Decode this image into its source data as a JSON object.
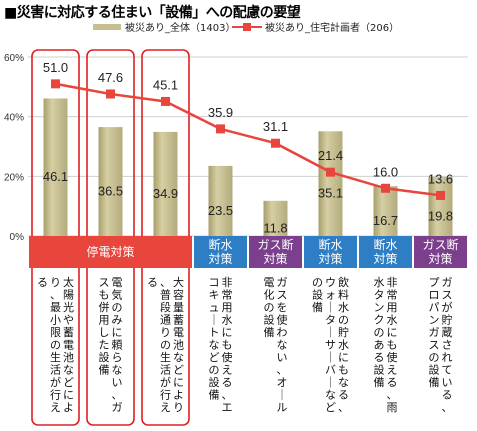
{
  "title": "■災害に対応する住まい「設備」への配慮の要望",
  "colors": {
    "bar": "#c7bf8f",
    "bar_dark": "#a79e6a",
    "line": "#e8453c",
    "marker": "#e8453c",
    "red_band": "#e8453c",
    "purple_band": "#7b3f8e",
    "blue_band": "#2e7ec6",
    "outline": "#e02020"
  },
  "chart_data": {
    "type": "bar",
    "ylim": [
      0,
      60
    ],
    "yticks": [
      "0%",
      "20%",
      "40%",
      "60%"
    ],
    "bar_series": {
      "name": "被災あり_全体（1403）",
      "values": [
        46.1,
        36.5,
        34.9,
        23.5,
        11.8,
        35.1,
        16.7,
        19.8
      ],
      "labels": [
        "46.1",
        "36.5",
        "34.9",
        "23.5",
        "11.8",
        "35.1",
        "16.7",
        "19.8"
      ]
    },
    "line_series": {
      "name": "被災あり_住宅計画者（206）",
      "values": [
        51.0,
        47.6,
        45.1,
        35.9,
        31.1,
        21.4,
        16.0,
        13.6
      ],
      "labels": [
        "51.0",
        "47.6",
        "45.1",
        "35.9",
        "31.1",
        "21.4",
        "16.0",
        "13.6"
      ]
    },
    "category_groups": [
      {
        "label": "停電対策",
        "color": "red"
      },
      {
        "label": "断水\n対策",
        "color": "blue"
      },
      {
        "label": "ガス断\n対策",
        "color": "purple"
      },
      {
        "label": "断水\n対策",
        "color": "blue"
      },
      {
        "label": "断水\n対策",
        "color": "blue"
      },
      {
        "label": "ガス断\n対策",
        "color": "purple"
      }
    ],
    "categories": [
      "太陽光や蓄電池などにより、最小限の生活が行える",
      "電気のみに頼らない、ガスも併用した設備",
      "大容量蓄電池などにより、普段通りの生活が行える",
      "非常用水にも使える、エコキュートなどの設備",
      "ガスを使わない、オール電化の設備",
      "飲料水の貯水にもなる、ウォーターサーバーなどの設備",
      "非常用水にも使える、雨水タンクのある設備",
      "ガスが貯蔵されている、プロパンガスの設備"
    ]
  }
}
